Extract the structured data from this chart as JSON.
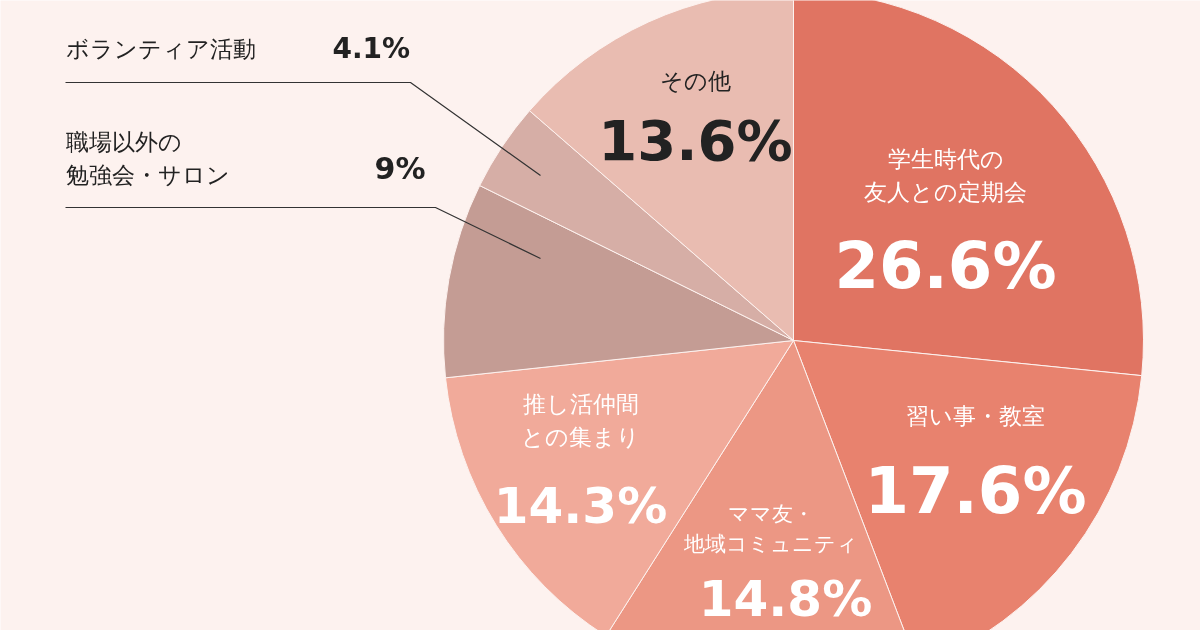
{
  "chart_data": {
    "type": "pie",
    "categories": [
      "学生時代の友人との定期会",
      "習い事・教室",
      "ママ友・地域コミュニティ",
      "推し活仲間との集まり",
      "職場以外の勉強会・サロン",
      "ボランティア活動",
      "その他"
    ],
    "values": [
      26.6,
      17.6,
      14.8,
      14.3,
      9,
      4.1,
      13.6
    ],
    "colors": [
      "#e07462",
      "#e8826e",
      "#ec9784",
      "#f1aa9a",
      "#c49c94",
      "#d6aea6",
      "#e9bcb1"
    ],
    "value_labels": [
      "26.6%",
      "17.6%",
      "14.8%",
      "14.3%",
      "9%",
      "4.1%",
      "13.6%"
    ]
  }
}
